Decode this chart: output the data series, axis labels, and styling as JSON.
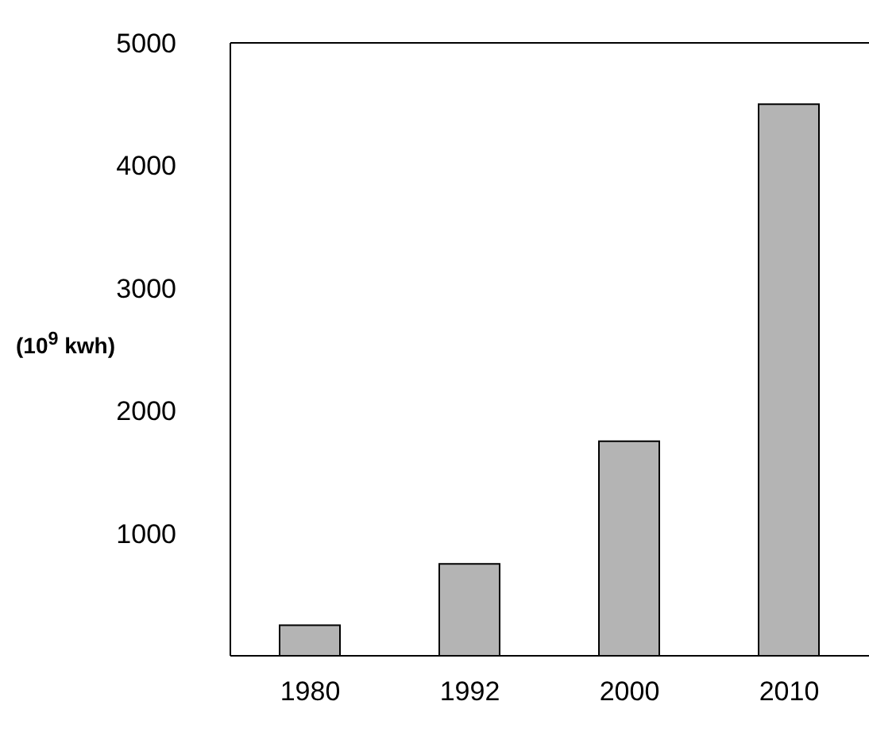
{
  "chart_data": {
    "type": "bar",
    "ylabel": "(10$^{9}$ kwh)",
    "categories": [
      "1980",
      "1992",
      "2000",
      "2010"
    ],
    "values": [
      250,
      750,
      1750,
      4500
    ],
    "color": "#b4b4b4",
    "ylim": [
      0,
      5000
    ],
    "yticks": [
      1000,
      2000,
      3000,
      4000,
      5000
    ],
    "grid": false,
    "legend": false
  }
}
